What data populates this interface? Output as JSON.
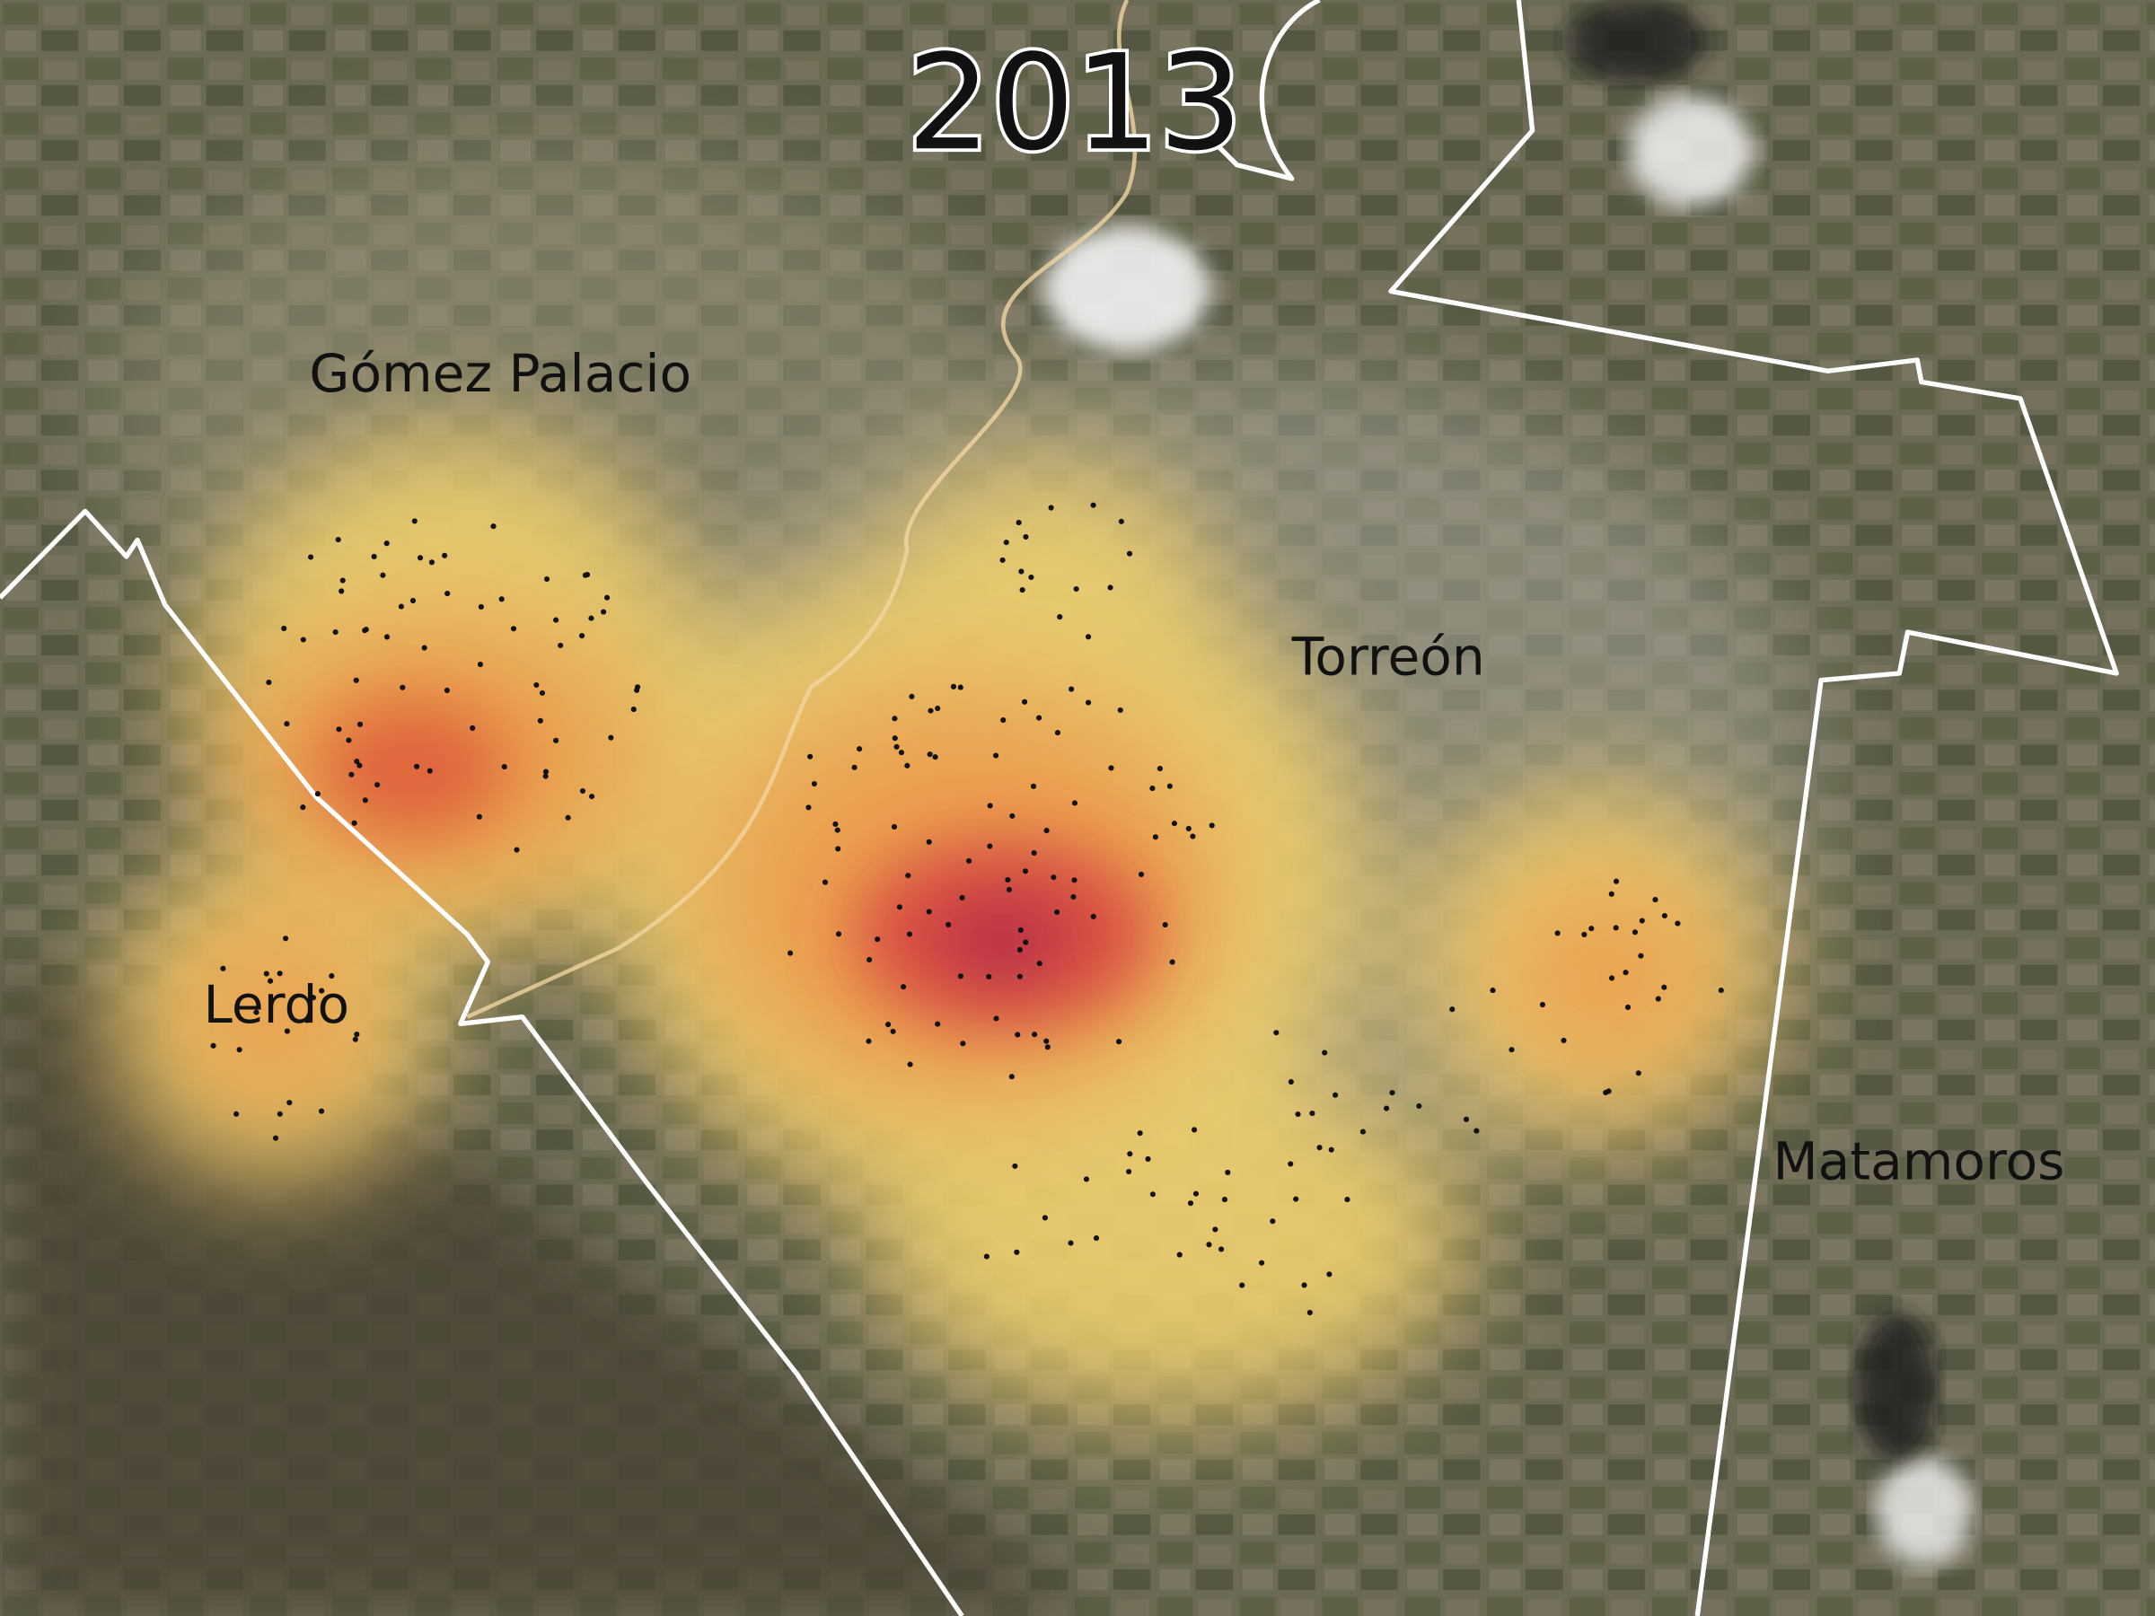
{
  "title": "2013",
  "places": [
    "Gómez Palacio",
    "Torreón",
    "Lerdo",
    "Matamoros"
  ]
}
